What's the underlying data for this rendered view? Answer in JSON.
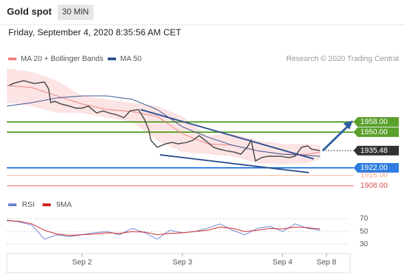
{
  "chart_data": {
    "type": "line",
    "title": "Gold spot",
    "timeframe": "30 MIN",
    "subtitle": "Friday, September 4, 2020 8:35:56 AM CET",
    "credit": "Research © 2020 Trading Central",
    "xlim": [
      0,
      164
    ],
    "xticks": [
      {
        "value": 36,
        "label": "Sep 2"
      },
      {
        "value": 84,
        "label": "Sep 3"
      },
      {
        "value": 132,
        "label": "Sep 4"
      },
      {
        "value": 153,
        "label": "Sep 8"
      }
    ],
    "ylim": [
      1900,
      2002
    ],
    "price": {
      "color": "#444444",
      "x": [
        1,
        3,
        8,
        13,
        18,
        20,
        21,
        23,
        26,
        30,
        33,
        36,
        39,
        43,
        46,
        49,
        53,
        56,
        59,
        63,
        66,
        68,
        69,
        72,
        76,
        79,
        82,
        86,
        89,
        92,
        95,
        99,
        102,
        105,
        109,
        112,
        115,
        117,
        119,
        122,
        125,
        128,
        131,
        135,
        138,
        141,
        144,
        146,
        150
      ],
      "values": [
        1986.5,
        1988.1,
        1990.3,
        1988.1,
        1989.2,
        1983.8,
        1973.1,
        1974.1,
        1972,
        1970.4,
        1968.8,
        1968.8,
        1970.4,
        1965,
        1966.6,
        1965,
        1963.4,
        1961.2,
        1966.6,
        1967.7,
        1959.6,
        1951.5,
        1943.5,
        1938.1,
        1940.8,
        1941.9,
        1940.8,
        1941.9,
        1943.5,
        1947.2,
        1943.5,
        1938.1,
        1936.5,
        1935.4,
        1934.3,
        1932.7,
        1938.1,
        1943.5,
        1927.4,
        1930,
        1931.1,
        1931.1,
        1931.1,
        1930,
        1931.1,
        1938.1,
        1939.2,
        1936.5,
        1935.5
      ]
    },
    "ma_x": [
      0,
      12,
      24,
      36,
      48,
      60,
      72,
      84,
      96,
      108,
      120,
      132,
      144,
      150
    ],
    "series": [
      {
        "name": "MA 20 + Bollinger Bands",
        "color": "#f08080",
        "values": [
          1986.5,
          1984.9,
          1978.4,
          1972,
          1967.7,
          1966.1,
          1962.3,
          1948.9,
          1940.8,
          1939.7,
          1935.4,
          1932.7,
          1932.7,
          1934.3
        ],
        "upper": [
          2000,
          1997.2,
          1990.3,
          1978.4,
          1975.7,
          1973.1,
          1970.4,
          1962.3,
          1947.2,
          1948.9,
          1943.5,
          1940.8,
          1940.8,
          1939.7
        ],
        "lower": [
          1973.1,
          1970.4,
          1965,
          1965,
          1961.2,
          1958,
          1943.5,
          1934.3,
          1932.7,
          1931.1,
          1925.7,
          1924.7,
          1925.7,
          1929
        ]
      },
      {
        "name": "MA 50",
        "color": "#2f4f8f",
        "values": [
          1970.4,
          1973.1,
          1976.8,
          1978.4,
          1978.4,
          1975.7,
          1967.7,
          1954.2,
          1946.2,
          1939.7,
          1935.4,
          1932.7,
          1931.7,
          1931.1
        ]
      }
    ],
    "levels": [
      {
        "value": 1958,
        "label": "1958.00",
        "color": "#5aa02c",
        "box": true
      },
      {
        "value": 1950,
        "label": "1950.00",
        "color": "#5aa02c",
        "box": true
      },
      {
        "value": 1935.48,
        "label": "1935.48",
        "color": "#333333",
        "box": true
      },
      {
        "value": 1922,
        "label": "1922.00",
        "color": "#2f7de1",
        "box": true
      },
      {
        "value": 1916,
        "label": "1916.00",
        "color": "#f0b090",
        "box": false
      },
      {
        "value": 1908,
        "label": "1908.00",
        "color": "#e05050",
        "box": false
      }
    ],
    "rsi": {
      "ylim": [
        20,
        80
      ],
      "yticks": [
        70,
        50,
        30
      ],
      "x": [
        0,
        6,
        12,
        18,
        24,
        30,
        36,
        42,
        48,
        54,
        60,
        66,
        72,
        78,
        84,
        90,
        96,
        102,
        108,
        114,
        120,
        126,
        132,
        138,
        144,
        150
      ],
      "series": [
        {
          "name": "RSI",
          "color": "#6a80d0",
          "values": [
            68,
            65,
            60,
            38,
            45,
            42,
            45,
            48,
            50,
            45,
            55,
            48,
            38,
            52,
            48,
            50,
            55,
            62,
            52,
            45,
            55,
            58,
            50,
            62,
            55,
            52
          ]
        },
        {
          "name": "9MA",
          "color": "#d02020",
          "values": [
            67,
            66,
            62,
            52,
            46,
            44,
            45,
            46,
            48,
            47,
            50,
            49,
            45,
            47,
            48,
            50,
            52,
            57,
            55,
            50,
            52,
            55,
            54,
            57,
            56,
            54
          ]
        }
      ]
    }
  }
}
